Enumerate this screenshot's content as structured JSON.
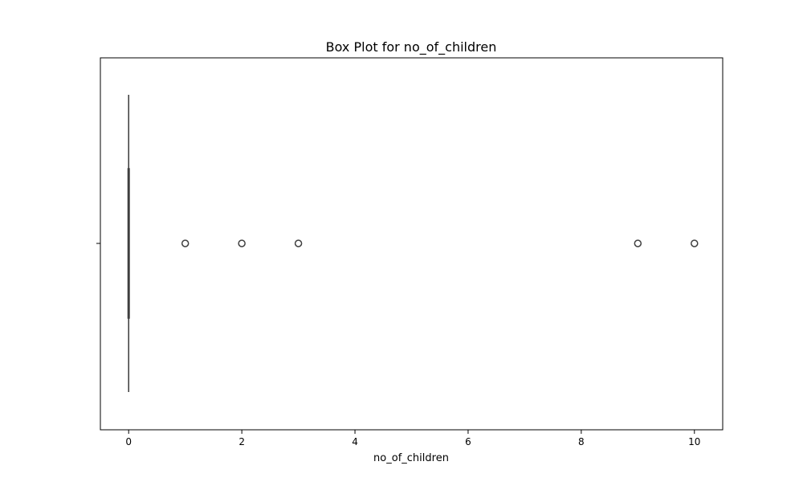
{
  "chart_data": {
    "type": "boxplot",
    "title": "Box Plot for no_of_children",
    "xlabel": "no_of_children",
    "ylabel": "",
    "orientation": "horizontal",
    "xlim": [
      -0.5,
      10.5
    ],
    "xticks": [
      0,
      2,
      4,
      6,
      8,
      10
    ],
    "xtick_labels": [
      "0",
      "2",
      "4",
      "6",
      "8",
      "10"
    ],
    "grid": false,
    "legend": "none",
    "box": {
      "min": 0,
      "q1": 0,
      "median": 0,
      "q3": 0,
      "max": 0
    },
    "outliers": [
      1,
      2,
      3,
      9,
      10
    ],
    "colors": {
      "box_line": "#3f3f3f",
      "outlier_edge": "#3f3f3f",
      "axes": "#000000",
      "background": "#ffffff"
    }
  }
}
